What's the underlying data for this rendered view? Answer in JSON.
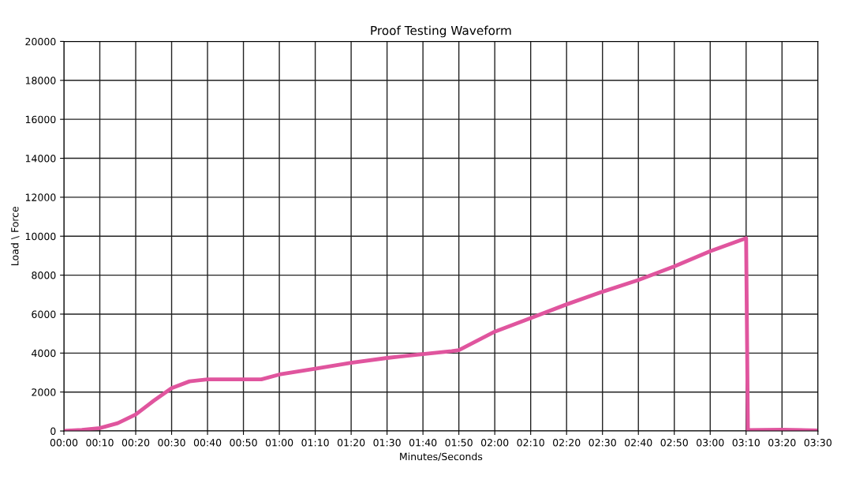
{
  "chart_data": {
    "type": "line",
    "title": "Proof Testing Waveform",
    "xlabel": "Minutes/Seconds",
    "ylabel": "Load \\ Force",
    "x": [
      0,
      5,
      10,
      15,
      20,
      25,
      30,
      35,
      40,
      45,
      50,
      55,
      60,
      70,
      80,
      90,
      100,
      108,
      110,
      120,
      130,
      140,
      150,
      160,
      170,
      180,
      190,
      190.5,
      195,
      200,
      210
    ],
    "series": [
      {
        "color": "#e0559e",
        "values": [
          0,
          60,
          150,
          400,
          850,
          1550,
          2200,
          2550,
          2650,
          2650,
          2650,
          2650,
          2900,
          3200,
          3500,
          3750,
          3950,
          4100,
          4150,
          5100,
          5800,
          6500,
          7150,
          7750,
          8450,
          9230,
          9900,
          50,
          60,
          70,
          30
        ]
      }
    ],
    "xlim": [
      0,
      210
    ],
    "xticks": [
      {
        "value": 0,
        "label": "00:00"
      },
      {
        "value": 10,
        "label": "00:10"
      },
      {
        "value": 20,
        "label": "00:20"
      },
      {
        "value": 30,
        "label": "00:30"
      },
      {
        "value": 40,
        "label": "00:40"
      },
      {
        "value": 50,
        "label": "00:50"
      },
      {
        "value": 60,
        "label": "01:00"
      },
      {
        "value": 70,
        "label": "01:10"
      },
      {
        "value": 80,
        "label": "01:20"
      },
      {
        "value": 90,
        "label": "01:30"
      },
      {
        "value": 100,
        "label": "01:40"
      },
      {
        "value": 110,
        "label": "01:50"
      },
      {
        "value": 120,
        "label": "02:00"
      },
      {
        "value": 130,
        "label": "02:10"
      },
      {
        "value": 140,
        "label": "02:20"
      },
      {
        "value": 150,
        "label": "02:30"
      },
      {
        "value": 160,
        "label": "02:40"
      },
      {
        "value": 170,
        "label": "02:50"
      },
      {
        "value": 180,
        "label": "03:00"
      },
      {
        "value": 190,
        "label": "03:10"
      },
      {
        "value": 200,
        "label": "03:20"
      },
      {
        "value": 210,
        "label": "03:30"
      }
    ],
    "ylim": [
      0,
      20000
    ],
    "yticks": [
      0,
      2000,
      4000,
      6000,
      8000,
      10000,
      12000,
      14000,
      16000,
      18000,
      20000
    ],
    "grid": true,
    "marker": "none",
    "line_style": "solid"
  }
}
